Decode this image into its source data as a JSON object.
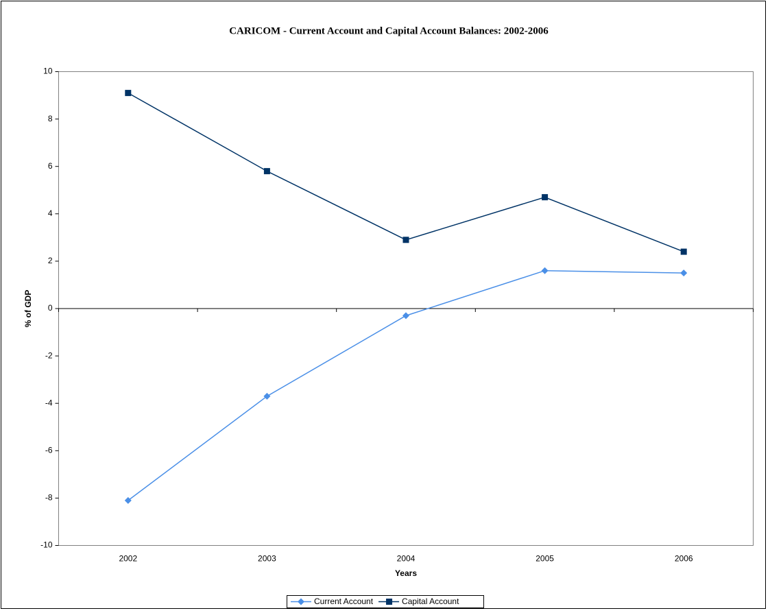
{
  "chart_data": {
    "type": "line",
    "title": "CARICOM - Current Account and Capital Account Balances: 2002-2006",
    "x_label": "Years",
    "y_label": "% of GDP",
    "categories": [
      "2002",
      "2003",
      "2004",
      "2005",
      "2006"
    ],
    "series": [
      {
        "name": "Current Account",
        "color": "#4a8fe7",
        "marker": "diamond",
        "values": [
          -8.1,
          -3.7,
          -0.3,
          1.6,
          1.5
        ]
      },
      {
        "name": "Capital Account",
        "color": "#003366",
        "marker": "square",
        "values": [
          9.1,
          5.8,
          2.9,
          4.7,
          2.4
        ]
      }
    ],
    "ylim": [
      -10,
      10
    ],
    "yticks": [
      -10,
      -8,
      -6,
      -4,
      -2,
      0,
      2,
      4,
      6,
      8,
      10
    ],
    "legend": "bottom"
  }
}
